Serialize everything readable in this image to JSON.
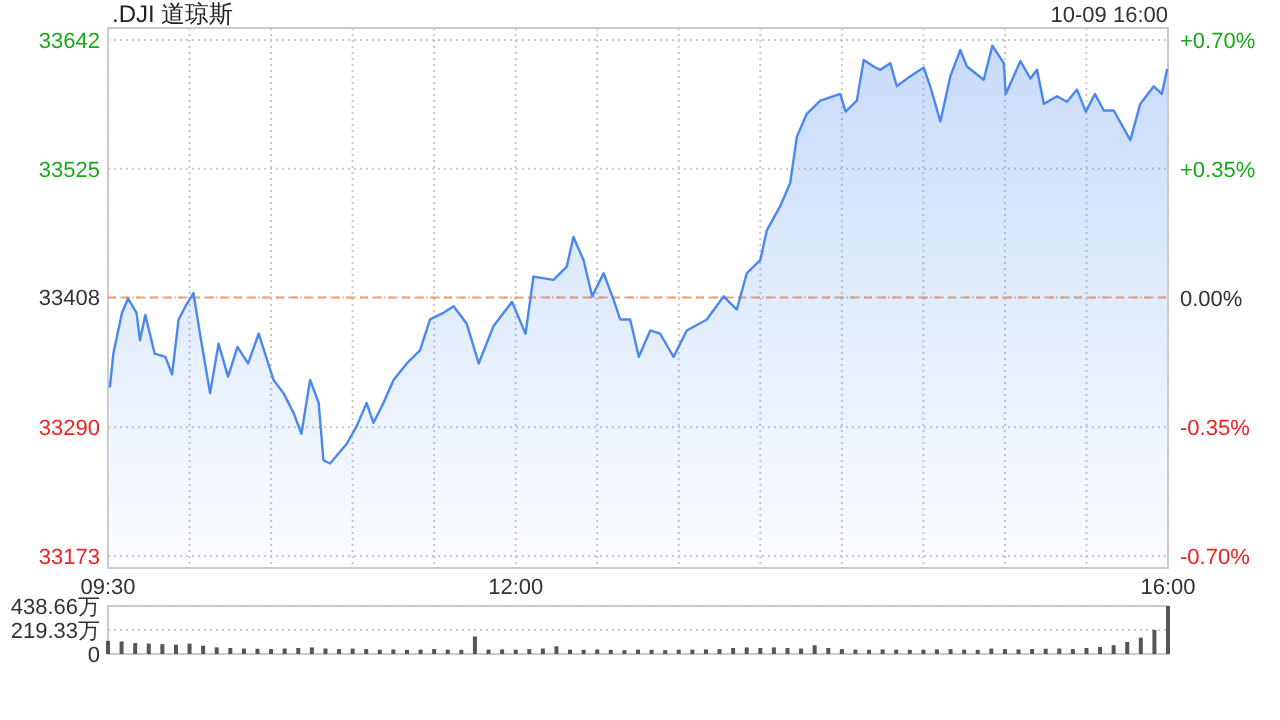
{
  "chart_data": [
    {
      "type": "area",
      "title": ".DJI 道琼斯",
      "annotations": [
        "10-09 16:00"
      ],
      "color": "#4a87ee",
      "grid": true,
      "x": [
        9.512,
        9.533,
        9.586,
        9.623,
        9.675,
        9.696,
        9.729,
        9.786,
        9.852,
        9.893,
        9.933,
        9.975,
        10.024,
        10.064,
        10.126,
        10.178,
        10.236,
        10.294,
        10.359,
        10.424,
        10.515,
        10.576,
        10.638,
        10.686,
        10.739,
        10.792,
        10.821,
        10.862,
        10.964,
        11.025,
        11.086,
        11.128,
        11.189,
        11.251,
        11.332,
        11.414,
        11.475,
        11.557,
        11.619,
        11.7,
        11.773,
        11.864,
        11.978,
        12.06,
        12.109,
        12.232,
        12.313,
        12.354,
        12.416,
        12.469,
        12.539,
        12.6,
        12.641,
        12.702,
        12.755,
        12.825,
        12.886,
        12.968,
        13.049,
        13.172,
        13.275,
        13.356,
        13.417,
        13.5,
        13.54,
        13.622,
        13.683,
        13.724,
        13.785,
        13.868,
        13.99,
        14.023,
        14.092,
        14.134,
        14.195,
        14.236,
        14.297,
        14.337,
        14.399,
        14.502,
        14.542,
        14.604,
        14.665,
        14.726,
        14.767,
        14.87,
        14.923,
        14.993,
        15.005,
        15.095,
        15.156,
        15.197,
        15.239,
        15.319,
        15.381,
        15.442,
        15.496,
        15.552,
        15.606,
        15.667,
        15.769,
        15.83,
        15.913,
        15.962,
        15.994
      ],
      "values": [
        33327,
        33357,
        33394,
        33407,
        33394,
        33369,
        33392,
        33357,
        33354,
        33338,
        33388,
        33400,
        33412,
        33375,
        33321,
        33366,
        33336,
        33363,
        33348,
        33375,
        33333,
        33321,
        33303,
        33284,
        33333,
        33312,
        33260,
        33257,
        33275,
        33291,
        33312,
        33294,
        33312,
        33333,
        33348,
        33360,
        33388,
        33394,
        33400,
        33384,
        33348,
        33382,
        33404,
        33375,
        33427,
        33424,
        33436,
        33463,
        33442,
        33409,
        33430,
        33406,
        33388,
        33388,
        33354,
        33378,
        33375,
        33354,
        33378,
        33388,
        33409,
        33397,
        33430,
        33442,
        33469,
        33491,
        33512,
        33554,
        33575,
        33587,
        33593,
        33577,
        33587,
        33624,
        33618,
        33615,
        33621,
        33600,
        33607,
        33617,
        33600,
        33568,
        33609,
        33633,
        33618,
        33606,
        33637,
        33621,
        33593,
        33623,
        33607,
        33615,
        33584,
        33591,
        33586,
        33597,
        33577,
        33593,
        33578,
        33578,
        33551,
        33584,
        33600,
        33593,
        33615
      ],
      "xlim": [
        9.5,
        16
      ],
      "xticks": [
        {
          "value": 9.5,
          "label": "09:30"
        },
        {
          "value": 10,
          "label": null
        },
        {
          "value": 10.5,
          "label": null
        },
        {
          "value": 11,
          "label": null
        },
        {
          "value": 11.5,
          "label": null
        },
        {
          "value": 12,
          "label": "12:00"
        },
        {
          "value": 12.5,
          "label": null
        },
        {
          "value": 13,
          "label": null
        },
        {
          "value": 13.5,
          "label": null
        },
        {
          "value": 14,
          "label": null
        },
        {
          "value": 14.5,
          "label": null
        },
        {
          "value": 15,
          "label": null
        },
        {
          "value": 15.5,
          "label": null
        },
        {
          "value": 16,
          "label": "16:00"
        }
      ],
      "ylim": [
        33162,
        33653
      ],
      "yticks": [
        33173,
        33290,
        33408,
        33525,
        33642
      ],
      "y2lim": [
        -0.733,
        0.733
      ],
      "y2ticks": [
        {
          "value": -0.7,
          "label": "-0.70%"
        },
        {
          "value": -0.35,
          "label": "-0.35%"
        },
        {
          "value": 0,
          "label": "0.00%"
        },
        {
          "value": 0.35,
          "label": "+0.35%"
        },
        {
          "value": 0.7,
          "label": "+0.70%"
        }
      ],
      "ref_lines": [
        {
          "axis": "y",
          "value": 33408,
          "color": "#f0a070",
          "line_style": "dashed"
        }
      ]
    },
    {
      "type": "bar",
      "color": "#555555",
      "grid": "y",
      "tick_labels": "y",
      "x": [
        9.5,
        9.5833,
        9.6667,
        9.75,
        9.8333,
        9.9167,
        10,
        10.0833,
        10.1667,
        10.25,
        10.3333,
        10.4167,
        10.5,
        10.5833,
        10.6667,
        10.75,
        10.8333,
        10.9167,
        11,
        11.0833,
        11.1667,
        11.25,
        11.3333,
        11.4167,
        11.5,
        11.5833,
        11.6667,
        11.75,
        11.8333,
        11.9167,
        12,
        12.0833,
        12.1667,
        12.25,
        12.3333,
        12.4167,
        12.5,
        12.5833,
        12.6667,
        12.75,
        12.8333,
        12.9167,
        13,
        13.0833,
        13.1667,
        13.25,
        13.3333,
        13.4167,
        13.5,
        13.5833,
        13.6667,
        13.75,
        13.8333,
        13.9167,
        14,
        14.0833,
        14.1667,
        14.25,
        14.3333,
        14.4167,
        14.5,
        14.5833,
        14.6667,
        14.75,
        14.8333,
        14.9167,
        15,
        15.0833,
        15.1667,
        15.25,
        15.3333,
        15.4167,
        15.5,
        15.5833,
        15.6667,
        15.75,
        15.8333,
        15.9167,
        16
      ],
      "values": [
        120,
        115,
        100,
        95,
        90,
        85,
        95,
        75,
        60,
        55,
        50,
        48,
        45,
        50,
        55,
        60,
        50,
        45,
        50,
        45,
        40,
        42,
        38,
        40,
        45,
        40,
        38,
        160,
        40,
        42,
        40,
        45,
        50,
        70,
        40,
        38,
        42,
        38,
        35,
        40,
        38,
        35,
        40,
        40,
        42,
        45,
        55,
        60,
        55,
        60,
        55,
        50,
        80,
        55,
        45,
        40,
        38,
        42,
        40,
        38,
        40,
        42,
        45,
        40,
        38,
        50,
        45,
        42,
        45,
        48,
        50,
        45,
        55,
        65,
        80,
        110,
        150,
        220,
        438
      ],
      "xlim": [
        9.5,
        16
      ],
      "ylim": [
        0,
        438.66
      ],
      "yticks": [
        0,
        {
          "value": 219.33,
          "label": "219.33万"
        },
        {
          "value": 438.66,
          "label": "438.66万"
        }
      ]
    }
  ]
}
